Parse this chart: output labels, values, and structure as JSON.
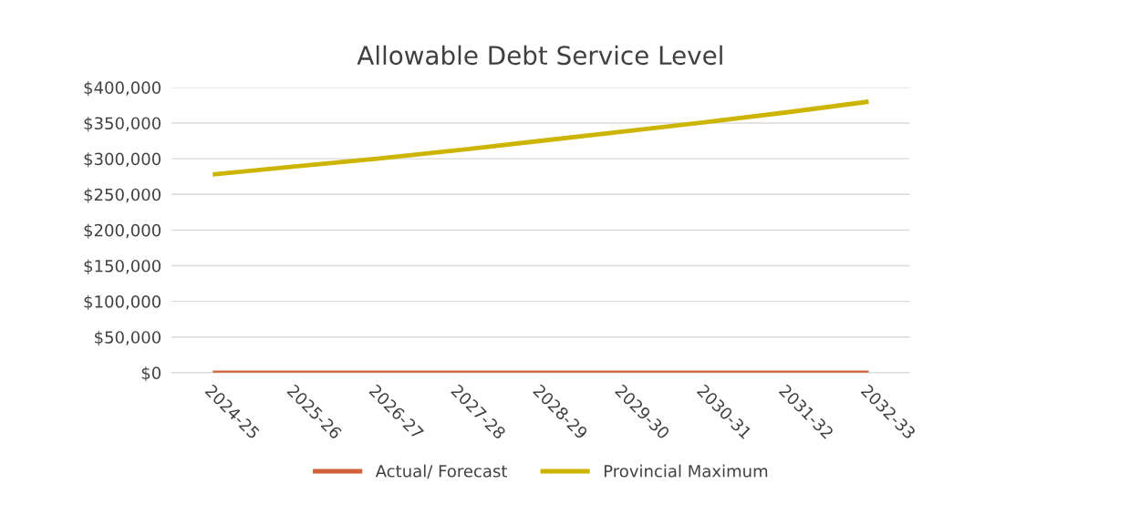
{
  "chart_data": {
    "type": "line",
    "title": "Allowable Debt Service Level",
    "categories": [
      "2024-25",
      "2025-26",
      "2026-27",
      "2027-28",
      "2028-29",
      "2029-30",
      "2030-31",
      "2031-32",
      "2032-33"
    ],
    "series": [
      {
        "name": "Actual/ Forecast",
        "color": "#d0613a",
        "values": [
          0,
          0,
          0,
          0,
          0,
          0,
          0,
          0,
          0
        ]
      },
      {
        "name": "Provincial Maximum",
        "color": "#ccb400",
        "values": [
          278000,
          289000,
          300000,
          312000,
          325000,
          338000,
          351000,
          365000,
          380000
        ]
      }
    ],
    "ylim": [
      0,
      400000
    ],
    "yticks": [
      {
        "value": 0,
        "label": "$0"
      },
      {
        "value": 50000,
        "label": "$50,000"
      },
      {
        "value": 100000,
        "label": "$100,000"
      },
      {
        "value": 150000,
        "label": "$150,000"
      },
      {
        "value": 200000,
        "label": "$200,000"
      },
      {
        "value": 250000,
        "label": "$250,000"
      },
      {
        "value": 300000,
        "label": "$300,000"
      },
      {
        "value": 350000,
        "label": "$350,000"
      },
      {
        "value": 400000,
        "label": "$400,000"
      }
    ],
    "grid": "y",
    "legend": "bottom",
    "marker": "none",
    "line_style": "solid"
  }
}
